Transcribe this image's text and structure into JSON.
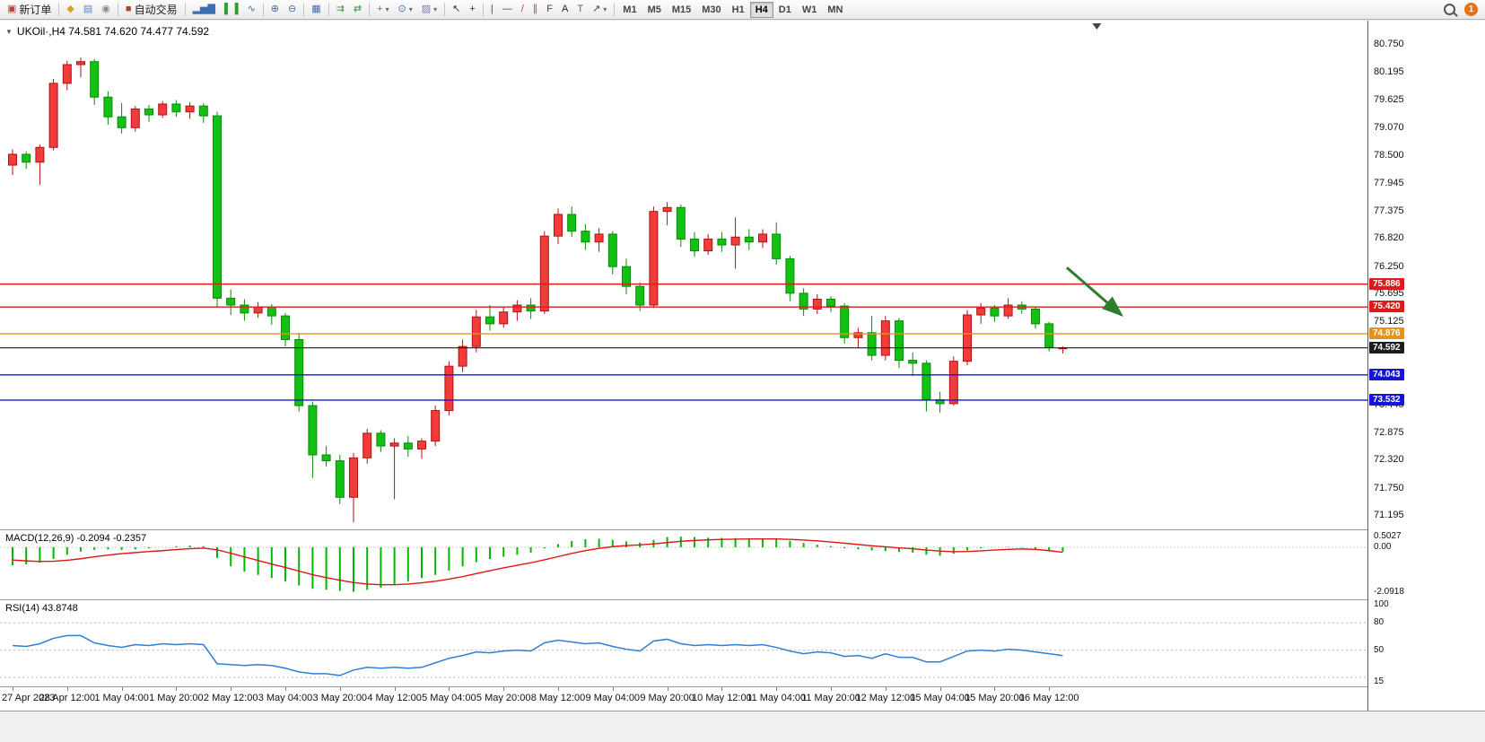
{
  "toolbar": {
    "caret_glyph": "▾",
    "notification_count": "1",
    "timeframes": [
      "M1",
      "M5",
      "M15",
      "M30",
      "H1",
      "H4",
      "D1",
      "W1",
      "MN"
    ],
    "active_timeframe": "H4",
    "groups": [
      {
        "items": [
          {
            "name": "new-order-button",
            "glyph": "▣",
            "glyph_color": "#c03a3a",
            "label": "新订单"
          }
        ]
      },
      {
        "items": [
          {
            "name": "market-watch-button",
            "glyph": "◆",
            "glyph_color": "#d8a31f"
          },
          {
            "name": "data-window-button",
            "glyph": "▤",
            "glyph_color": "#5b87c5"
          },
          {
            "name": "navigator-button",
            "glyph": "◉",
            "glyph_color": "#8a8a8a"
          }
        ]
      },
      {
        "items": [
          {
            "name": "auto-trading-button",
            "glyph": "■",
            "glyph_color": "#b04030",
            "label": "自动交易"
          }
        ]
      },
      {
        "items": [
          {
            "name": "bar-chart-button",
            "glyph": "▂▅▇",
            "glyph_color": "#3d6fb0"
          },
          {
            "name": "candlestick-chart-button",
            "glyph": "▌▐",
            "glyph_color": "#2f9e2f"
          },
          {
            "name": "line-chart-button",
            "glyph": "∿",
            "glyph_color": "#3d6fb0"
          }
        ]
      },
      {
        "items": [
          {
            "name": "zoom-in-button",
            "glyph": "⊕",
            "glyph_color": "#3d6fb0"
          },
          {
            "name": "zoom-out-button",
            "glyph": "⊖",
            "glyph_color": "#3d6fb0"
          }
        ]
      },
      {
        "items": [
          {
            "name": "tile-windows-button",
            "glyph": "▦",
            "glyph_color": "#3d6fb0"
          }
        ]
      },
      {
        "items": [
          {
            "name": "auto-scroll-button",
            "glyph": "⇉",
            "glyph_color": "#3f8f3f"
          },
          {
            "name": "chart-shift-button",
            "glyph": "⇄",
            "glyph_color": "#3f8f3f"
          }
        ]
      },
      {
        "items": [
          {
            "name": "indicators-button",
            "glyph": "+",
            "glyph_color": "#2f9e2f",
            "caret": true
          },
          {
            "name": "periods-button",
            "glyph": "⊙",
            "glyph_color": "#3d6fb0",
            "caret": true
          },
          {
            "name": "templates-button",
            "glyph": "▨",
            "glyph_color": "#8a6fb0",
            "caret": true
          }
        ]
      },
      {
        "items": [
          {
            "name": "cursor-button",
            "glyph": "↖",
            "glyph_color": "#333333"
          },
          {
            "name": "crosshair-button",
            "glyph": "+",
            "glyph_color": "#333333"
          }
        ]
      },
      {
        "items": [
          {
            "name": "vertical-line-button",
            "glyph": "|",
            "glyph_color": "#444444"
          },
          {
            "name": "horizontal-line-button",
            "glyph": "—",
            "glyph_color": "#444444"
          },
          {
            "name": "trendline-button",
            "glyph": "/",
            "glyph_color": "#c03a3a"
          },
          {
            "name": "channel-button",
            "glyph": "∥",
            "glyph_color": "#c03a3a"
          },
          {
            "name": "fibonacci-button",
            "glyph": "F",
            "glyph_color": "#444444"
          },
          {
            "name": "text-button",
            "glyph": "A",
            "glyph_color": "#222222"
          },
          {
            "name": "label-button",
            "glyph": "T",
            "glyph_color": "#666666"
          },
          {
            "name": "arrows-button",
            "glyph": "↗",
            "glyph_color": "#444444",
            "caret": true
          }
        ]
      }
    ]
  },
  "chart": {
    "symbol_label": "UKOil·,H4 74.581 74.620 74.477 74.592",
    "dropdown_glyph": "▼"
  },
  "indicators": {
    "macd_label": "MACD(12,26,9) -0.2094 -0.2357",
    "rsi_label": "RSI(14) 43.8748"
  },
  "chart_data": [
    {
      "type": "candlestick",
      "title": "UKOil",
      "timeframe": "H4",
      "ohlc_display": {
        "open": "74.581",
        "high": "74.620",
        "low": "74.477",
        "close": "74.592"
      },
      "ylim": [
        71.0,
        81.05
      ],
      "up_color": "#f23b3b",
      "up_border": "#b01212",
      "down_color": "#12c112",
      "down_border": "#0a8a0a",
      "y_tick_labels": [
        "80.750",
        "80.195",
        "79.625",
        "79.070",
        "78.500",
        "77.945",
        "77.375",
        "76.820",
        "76.250",
        "75.695",
        "75.125",
        "73.445",
        "72.875",
        "72.320",
        "71.750",
        "71.195"
      ],
      "x_tick_labels": [
        "27 Apr 2023",
        "28 Apr 12:00",
        "1 May 04:00",
        "1 May 20:00",
        "2 May 12:00",
        "3 May 04:00",
        "3 May 20:00",
        "4 May 12:00",
        "5 May 04:00",
        "5 May 20:00",
        "8 May 12:00",
        "9 May 04:00",
        "9 May 20:00",
        "10 May 12:00",
        "11 May 04:00",
        "11 May 20:00",
        "12 May 12:00",
        "15 May 04:00",
        "15 May 20:00",
        "16 May 12:00"
      ],
      "hlines": [
        {
          "price": 75.886,
          "label": "75.886",
          "color": "#dc1c1c",
          "width": 1.4,
          "badge": true,
          "name": "resistance-line-1"
        },
        {
          "price": 75.42,
          "label": "75.420",
          "color": "#dc1c1c",
          "width": 1.4,
          "badge": true,
          "name": "resistance-line-2"
        },
        {
          "price": 74.876,
          "label": "74.876",
          "color": "#e8921e",
          "width": 1.4,
          "badge": true,
          "name": "pivot-line"
        },
        {
          "price": 74.592,
          "label": "74.592",
          "color": "#1c1c1c",
          "width": 1.1,
          "badge": true,
          "name": "current-price-line"
        },
        {
          "price": 74.043,
          "label": "74.043",
          "color": "#1515d8",
          "width": 1.4,
          "badge": true,
          "name": "support-line-1"
        },
        {
          "price": 73.532,
          "label": "73.532",
          "color": "#1515d8",
          "width": 1.4,
          "badge": true,
          "name": "support-line-2"
        }
      ],
      "annotations": [
        {
          "type": "arrow",
          "x1_bar": 77.3,
          "price1": 76.22,
          "x2_bar": 81.3,
          "price2": 75.26,
          "color": "#2d7d2d"
        }
      ],
      "shift_marker_bar": 79.5,
      "candles": [
        [
          78.3,
          78.62,
          78.1,
          78.52
        ],
        [
          78.52,
          78.58,
          78.22,
          78.36
        ],
        [
          78.36,
          78.72,
          77.9,
          78.66
        ],
        [
          78.66,
          80.05,
          78.6,
          79.96
        ],
        [
          79.96,
          80.42,
          79.82,
          80.34
        ],
        [
          80.34,
          80.48,
          80.08,
          80.4
        ],
        [
          80.4,
          80.45,
          79.52,
          79.68
        ],
        [
          79.68,
          79.8,
          79.12,
          79.28
        ],
        [
          79.28,
          79.56,
          78.94,
          79.06
        ],
        [
          79.06,
          79.5,
          78.98,
          79.44
        ],
        [
          79.44,
          79.52,
          79.18,
          79.32
        ],
        [
          79.32,
          79.6,
          79.26,
          79.54
        ],
        [
          79.54,
          79.62,
          79.28,
          79.38
        ],
        [
          79.38,
          79.58,
          79.24,
          79.5
        ],
        [
          79.5,
          79.56,
          79.16,
          79.3
        ],
        [
          79.3,
          79.38,
          75.42,
          75.6
        ],
        [
          75.6,
          75.78,
          75.26,
          75.46
        ],
        [
          75.46,
          75.58,
          75.14,
          75.3
        ],
        [
          75.3,
          75.52,
          75.2,
          75.42
        ],
        [
          75.42,
          75.48,
          75.06,
          75.24
        ],
        [
          75.24,
          75.3,
          74.62,
          74.76
        ],
        [
          74.76,
          74.9,
          73.3,
          73.42
        ],
        [
          73.42,
          73.5,
          71.95,
          72.42
        ],
        [
          72.42,
          72.6,
          72.18,
          72.3
        ],
        [
          72.3,
          72.42,
          71.42,
          71.56
        ],
        [
          71.56,
          72.46,
          71.05,
          72.36
        ],
        [
          72.36,
          72.95,
          72.24,
          72.86
        ],
        [
          72.86,
          72.92,
          72.48,
          72.6
        ],
        [
          72.6,
          72.76,
          71.52,
          72.66
        ],
        [
          72.66,
          72.8,
          72.38,
          72.54
        ],
        [
          72.54,
          72.76,
          72.34,
          72.7
        ],
        [
          72.7,
          73.42,
          72.6,
          73.32
        ],
        [
          73.32,
          74.32,
          73.22,
          74.22
        ],
        [
          74.22,
          74.76,
          74.1,
          74.62
        ],
        [
          74.62,
          75.36,
          74.5,
          75.22
        ],
        [
          75.22,
          75.46,
          74.94,
          75.08
        ],
        [
          75.08,
          75.42,
          75.0,
          75.32
        ],
        [
          75.32,
          75.56,
          75.14,
          75.46
        ],
        [
          75.46,
          75.6,
          75.18,
          75.34
        ],
        [
          75.34,
          76.96,
          75.28,
          76.86
        ],
        [
          76.86,
          77.42,
          76.7,
          77.3
        ],
        [
          77.3,
          77.46,
          76.84,
          76.96
        ],
        [
          76.96,
          77.1,
          76.58,
          76.74
        ],
        [
          76.74,
          77.02,
          76.54,
          76.9
        ],
        [
          76.9,
          76.96,
          76.08,
          76.24
        ],
        [
          76.24,
          76.4,
          75.68,
          75.84
        ],
        [
          75.84,
          75.92,
          75.34,
          75.46
        ],
        [
          75.46,
          77.46,
          75.4,
          77.36
        ],
        [
          77.36,
          77.55,
          77.08,
          77.44
        ],
        [
          77.44,
          77.5,
          76.64,
          76.8
        ],
        [
          76.8,
          76.94,
          76.44,
          76.56
        ],
        [
          76.56,
          76.9,
          76.48,
          76.8
        ],
        [
          76.8,
          76.94,
          76.54,
          76.68
        ],
        [
          76.68,
          77.24,
          76.2,
          76.84
        ],
        [
          76.84,
          77.0,
          76.58,
          76.74
        ],
        [
          76.74,
          77.0,
          76.62,
          76.9
        ],
        [
          76.9,
          77.14,
          76.28,
          76.4
        ],
        [
          76.4,
          76.46,
          75.54,
          75.7
        ],
        [
          75.7,
          75.8,
          75.24,
          75.38
        ],
        [
          75.38,
          75.68,
          75.28,
          75.58
        ],
        [
          75.58,
          75.64,
          75.32,
          75.44
        ],
        [
          75.44,
          75.5,
          74.68,
          74.8
        ],
        [
          74.8,
          75.0,
          74.58,
          74.9
        ],
        [
          74.9,
          75.24,
          74.34,
          74.44
        ],
        [
          74.44,
          75.24,
          74.34,
          75.14
        ],
        [
          75.14,
          75.2,
          74.18,
          74.34
        ],
        [
          74.34,
          74.5,
          74.02,
          74.28
        ],
        [
          74.28,
          74.34,
          73.3,
          73.54
        ],
        [
          73.54,
          73.7,
          73.28,
          73.46
        ],
        [
          73.46,
          74.42,
          73.42,
          74.32
        ],
        [
          74.32,
          75.36,
          74.24,
          75.26
        ],
        [
          75.26,
          75.5,
          75.08,
          75.4
        ],
        [
          75.4,
          75.46,
          75.12,
          75.24
        ],
        [
          75.24,
          75.6,
          75.18,
          75.46
        ],
        [
          75.46,
          75.54,
          75.28,
          75.38
        ],
        [
          75.38,
          75.44,
          74.98,
          75.08
        ],
        [
          75.08,
          75.12,
          74.52,
          74.6
        ],
        [
          74.581,
          74.62,
          74.477,
          74.592
        ]
      ]
    },
    {
      "type": "bar",
      "name": "MACD",
      "params": "12,26,9",
      "value_text": "-0.2094 -0.2357",
      "ylim": [
        -2.45,
        0.8
      ],
      "y_tick_labels": [
        "0.5027",
        "0.00",
        "-2.0918"
      ],
      "histogram_color": "#00b800",
      "signal_color": "#e01515",
      "histogram": [
        -0.85,
        -0.8,
        -0.72,
        -0.55,
        -0.35,
        -0.2,
        -0.12,
        -0.1,
        -0.12,
        -0.1,
        -0.05,
        0.0,
        0.05,
        0.08,
        0.05,
        -0.5,
        -0.9,
        -1.15,
        -1.3,
        -1.45,
        -1.6,
        -1.8,
        -1.95,
        -2.0,
        -2.05,
        -2.0918,
        -2.0,
        -1.9,
        -1.75,
        -1.6,
        -1.45,
        -1.3,
        -1.1,
        -0.9,
        -0.7,
        -0.55,
        -0.45,
        -0.35,
        -0.25,
        -0.05,
        0.15,
        0.3,
        0.38,
        0.4,
        0.35,
        0.28,
        0.22,
        0.35,
        0.48,
        0.5027,
        0.48,
        0.45,
        0.44,
        0.43,
        0.42,
        0.42,
        0.4,
        0.3,
        0.2,
        0.12,
        0.05,
        -0.05,
        -0.1,
        -0.15,
        -0.18,
        -0.22,
        -0.25,
        -0.35,
        -0.4,
        -0.3,
        -0.15,
        -0.05,
        0.0,
        0.02,
        -0.02,
        -0.08,
        -0.15,
        -0.2094
      ],
      "signal": [
        -0.6,
        -0.64,
        -0.67,
        -0.66,
        -0.61,
        -0.54,
        -0.45,
        -0.37,
        -0.3,
        -0.25,
        -0.2,
        -0.16,
        -0.11,
        -0.07,
        -0.04,
        -0.12,
        -0.28,
        -0.45,
        -0.62,
        -0.79,
        -0.95,
        -1.12,
        -1.29,
        -1.43,
        -1.55,
        -1.66,
        -1.73,
        -1.76,
        -1.76,
        -1.73,
        -1.67,
        -1.6,
        -1.5,
        -1.38,
        -1.24,
        -1.1,
        -0.97,
        -0.85,
        -0.73,
        -0.59,
        -0.44,
        -0.29,
        -0.16,
        -0.05,
        0.03,
        0.08,
        0.11,
        0.16,
        0.22,
        0.28,
        0.32,
        0.35,
        0.37,
        0.38,
        0.39,
        0.39,
        0.39,
        0.37,
        0.34,
        0.3,
        0.25,
        0.19,
        0.13,
        0.07,
        0.02,
        -0.03,
        -0.07,
        -0.13,
        -0.18,
        -0.21,
        -0.2,
        -0.17,
        -0.13,
        -0.1,
        -0.08,
        -0.1,
        -0.16,
        -0.2357
      ]
    },
    {
      "type": "line",
      "name": "RSI",
      "params": "14",
      "value_text": "43.8748",
      "ylim": [
        10,
        105
      ],
      "y_tick_labels": [
        "100",
        "80",
        "50",
        "15"
      ],
      "levels": [
        80,
        50,
        20
      ],
      "line_color": "#2f7fd4",
      "values": [
        55,
        54,
        57,
        63,
        66,
        66,
        58,
        55,
        53,
        56,
        55,
        57,
        56,
        57,
        56,
        35,
        34,
        33,
        34,
        33,
        30,
        26,
        24,
        24,
        22,
        28,
        31,
        30,
        31,
        30,
        31,
        36,
        41,
        44,
        48,
        47,
        49,
        50,
        49,
        58,
        61,
        59,
        57,
        58,
        54,
        51,
        49,
        60,
        62,
        57,
        55,
        56,
        55,
        56,
        55,
        56,
        53,
        49,
        46,
        48,
        47,
        43,
        44,
        41,
        46,
        42,
        42,
        37,
        37,
        43,
        49,
        50,
        49,
        51,
        50,
        48,
        46,
        43.8748
      ]
    }
  ]
}
